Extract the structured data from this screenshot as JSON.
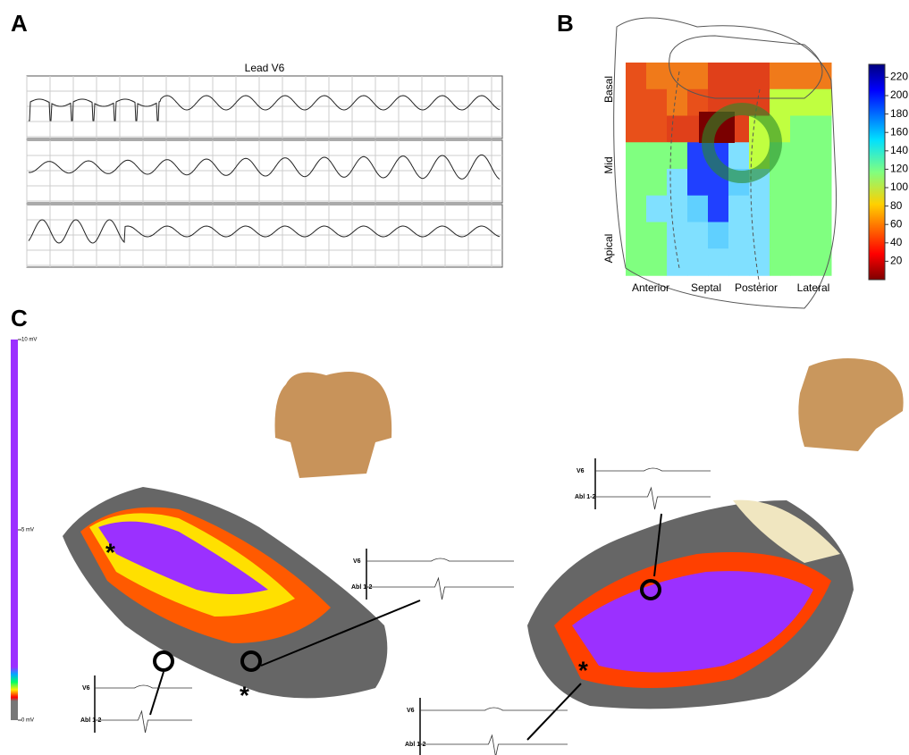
{
  "panels": {
    "a": {
      "label": "A",
      "title": "Lead V6"
    },
    "b": {
      "label": "B",
      "row_labels": [
        "Basal",
        "Mid",
        "Apical"
      ],
      "column_labels": [
        "Anterior",
        "Septal",
        "Posterior",
        "Lateral"
      ],
      "colorbar": {
        "lim": [
          0,
          234
        ],
        "ticks": [
          20,
          40,
          60,
          80,
          100,
          120,
          140,
          160,
          180,
          200,
          220
        ]
      }
    },
    "c": {
      "label": "C",
      "voltage_scale": {
        "lim": [
          0,
          10
        ],
        "ticks": [
          {
            "value": 10,
            "label": "10 mV"
          },
          {
            "value": 5,
            "label": "5 mV"
          },
          {
            "value": 0,
            "label": "0 mV"
          }
        ]
      },
      "insets": [
        {
          "lead": "V6",
          "ablation": "Abl 1-2"
        },
        {
          "lead": "V6",
          "ablation": "Abl 1-2"
        },
        {
          "lead": "V6",
          "ablation": "Abl 1-2"
        },
        {
          "lead": "V6",
          "ablation": "Abl 1-2"
        }
      ]
    }
  }
}
